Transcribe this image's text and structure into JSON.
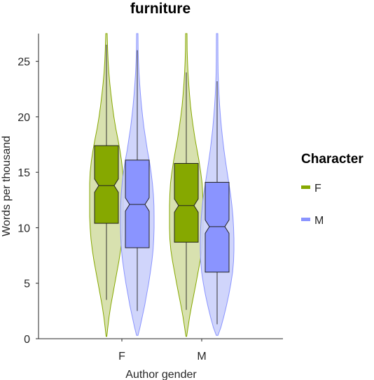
{
  "chart_data": {
    "type": "violin-box",
    "title": "furniture",
    "xlabel": "Author gender",
    "ylabel": "Words per thousand",
    "categories": [
      "F",
      "M"
    ],
    "ylim": [
      0,
      27.5
    ],
    "yticks": [
      0,
      5,
      10,
      15,
      20,
      25
    ],
    "grid": false,
    "legend": {
      "title": "Character",
      "placement": "right",
      "entries": [
        "F",
        "M"
      ]
    },
    "colors": {
      "F": "#86a800",
      "F_violin_fill": "#d4dea6",
      "M": "#8a94ff",
      "M_violin_fill": "#cbd0fb"
    },
    "series": [
      {
        "name": "F",
        "groups": [
          {
            "category": "F",
            "box": {
              "q1": 10.4,
              "median": 13.8,
              "q3": 17.4,
              "notch_low": 13.2,
              "notch_high": 14.4,
              "whisker_low": 3.5,
              "whisker_high": 26.5
            },
            "density": [
              [
                0.2,
                0.02
              ],
              [
                1,
                0.08
              ],
              [
                2,
                0.16
              ],
              [
                3,
                0.26
              ],
              [
                4,
                0.38
              ],
              [
                5,
                0.5
              ],
              [
                6,
                0.62
              ],
              [
                7,
                0.74
              ],
              [
                8,
                0.84
              ],
              [
                9,
                0.92
              ],
              [
                10,
                0.97
              ],
              [
                11,
                1.0
              ],
              [
                12,
                1.0
              ],
              [
                13,
                1.0
              ],
              [
                14,
                1.0
              ],
              [
                15,
                0.97
              ],
              [
                16,
                0.9
              ],
              [
                17,
                0.8
              ],
              [
                18,
                0.68
              ],
              [
                19,
                0.55
              ],
              [
                20,
                0.44
              ],
              [
                21,
                0.35
              ],
              [
                22,
                0.27
              ],
              [
                23,
                0.2
              ],
              [
                24,
                0.14
              ],
              [
                25,
                0.1
              ],
              [
                26,
                0.07
              ],
              [
                27,
                0.05
              ],
              [
                27.5,
                0.04
              ]
            ]
          },
          {
            "category": "M",
            "box": {
              "q1": 8.7,
              "median": 12.0,
              "q3": 15.8,
              "notch_low": 11.4,
              "notch_high": 12.6,
              "whisker_low": 2.6,
              "whisker_high": 24.0
            },
            "density": [
              [
                0.2,
                0.02
              ],
              [
                1,
                0.1
              ],
              [
                2,
                0.2
              ],
              [
                3,
                0.32
              ],
              [
                4,
                0.45
              ],
              [
                5,
                0.58
              ],
              [
                6,
                0.7
              ],
              [
                7,
                0.82
              ],
              [
                8,
                0.92
              ],
              [
                9,
                0.98
              ],
              [
                10,
                1.0
              ],
              [
                11,
                1.0
              ],
              [
                12,
                1.0
              ],
              [
                13,
                0.98
              ],
              [
                14,
                0.94
              ],
              [
                15,
                0.86
              ],
              [
                16,
                0.76
              ],
              [
                17,
                0.64
              ],
              [
                18,
                0.52
              ],
              [
                19,
                0.42
              ],
              [
                20,
                0.33
              ],
              [
                21,
                0.25
              ],
              [
                22,
                0.19
              ],
              [
                23,
                0.14
              ],
              [
                24,
                0.1
              ],
              [
                25,
                0.07
              ],
              [
                26,
                0.05
              ],
              [
                27.5,
                0.04
              ]
            ]
          }
        ]
      },
      {
        "name": "M",
        "groups": [
          {
            "category": "F",
            "box": {
              "q1": 8.2,
              "median": 12.1,
              "q3": 16.1,
              "notch_low": 11.5,
              "notch_high": 12.7,
              "whisker_low": 2.5,
              "whisker_high": 26.0
            },
            "density": [
              [
                0.3,
                0.04
              ],
              [
                1,
                0.16
              ],
              [
                2,
                0.3
              ],
              [
                3,
                0.44
              ],
              [
                4,
                0.56
              ],
              [
                5,
                0.68
              ],
              [
                6,
                0.78
              ],
              [
                7,
                0.87
              ],
              [
                8,
                0.94
              ],
              [
                9,
                0.98
              ],
              [
                10,
                1.0
              ],
              [
                11,
                1.0
              ],
              [
                12,
                0.99
              ],
              [
                13,
                0.96
              ],
              [
                14,
                0.9
              ],
              [
                15,
                0.82
              ],
              [
                16,
                0.72
              ],
              [
                17,
                0.6
              ],
              [
                18,
                0.5
              ],
              [
                19,
                0.4
              ],
              [
                20,
                0.32
              ],
              [
                21,
                0.25
              ],
              [
                22,
                0.19
              ],
              [
                23,
                0.14
              ],
              [
                24,
                0.1
              ],
              [
                25,
                0.07
              ],
              [
                26,
                0.05
              ],
              [
                27.5,
                0.04
              ]
            ]
          },
          {
            "category": "M",
            "box": {
              "q1": 6.0,
              "median": 10.1,
              "q3": 14.1,
              "notch_low": 9.5,
              "notch_high": 10.7,
              "whisker_low": 1.3,
              "whisker_high": 23.2
            },
            "density": [
              [
                0.3,
                0.05
              ],
              [
                1,
                0.22
              ],
              [
                2,
                0.4
              ],
              [
                3,
                0.56
              ],
              [
                4,
                0.7
              ],
              [
                5,
                0.82
              ],
              [
                6,
                0.92
              ],
              [
                7,
                0.98
              ],
              [
                8,
                1.0
              ],
              [
                9,
                1.0
              ],
              [
                10,
                0.98
              ],
              [
                11,
                0.94
              ],
              [
                12,
                0.88
              ],
              [
                13,
                0.8
              ],
              [
                14,
                0.7
              ],
              [
                15,
                0.6
              ],
              [
                16,
                0.5
              ],
              [
                17,
                0.41
              ],
              [
                18,
                0.33
              ],
              [
                19,
                0.26
              ],
              [
                20,
                0.2
              ],
              [
                21,
                0.15
              ],
              [
                22,
                0.11
              ],
              [
                23,
                0.08
              ],
              [
                24,
                0.06
              ],
              [
                25,
                0.05
              ],
              [
                27.5,
                0.04
              ]
            ]
          }
        ]
      }
    ]
  }
}
